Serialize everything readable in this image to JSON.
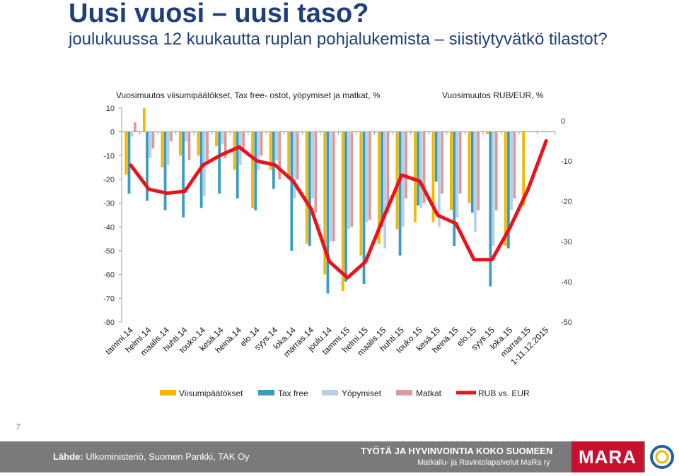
{
  "title": "Uusi vuosi – uusi taso?",
  "subtitle": "joulukuussa 12 kuukautta ruplan pohjalukemista – siistiytyvätkö tilastot?",
  "page_number": "7",
  "footer": {
    "source_label": "Lähde:",
    "source_text": "Ulkoministeriö, Suomen Pankki, TAK Oy",
    "tagline": "TYÖTÄ JA HYVINVOINTIA KOKO SUOMEEN",
    "org": "Matkailu- ja Ravintolapalvelut MaRa ry",
    "logo": "MARA"
  },
  "colors": {
    "viisumi": "#f5b800",
    "taxfree": "#3a9cbf",
    "yopymiset": "#b8d0e6",
    "matkat": "#d99b9b",
    "rub": "#e8141c",
    "axis_text": "#333333"
  },
  "chart_data": {
    "type": "bar",
    "title_left": "Vuosimuutos viisumipäätökset, Tax free- ostot, yöpymiset ja matkat, %",
    "title_right": "Vuosimuutos RUB/EUR, %",
    "categories": [
      "tammi.14",
      "helmi.14",
      "maalis.14",
      "huhti.14",
      "touko.14",
      "kesä.14",
      "heinä.14",
      "elo.14",
      "syys.14",
      "loka.14",
      "marras.14",
      "joulu.14",
      "tammi.15",
      "helmi.15",
      "maalis.15",
      "huhti.15",
      "touko.15",
      "kesä.15",
      "heinä.15",
      "elo.15",
      "syys.15",
      "loka.15",
      "marras.15",
      "1-11.12.2015"
    ],
    "y_left": {
      "min": -80,
      "max": 10,
      "ticks": [
        10,
        0,
        -10,
        -20,
        -30,
        -40,
        -50,
        -60,
        -70,
        -80
      ]
    },
    "y_right": {
      "min": -50,
      "max": 3,
      "ticks": [
        0,
        -10,
        -20,
        -30,
        -40,
        -50
      ]
    },
    "grid": false,
    "legend_position": "bottom",
    "series": [
      {
        "name": "Viisumipäätökset",
        "axis": "left",
        "kind": "bar",
        "values": [
          -18,
          10,
          -15,
          -10,
          -10,
          -6,
          -16,
          -32,
          -16,
          -20,
          -47,
          -60,
          -67,
          -52,
          -47,
          -41,
          -38,
          -38,
          -33,
          -30,
          -1,
          -48,
          -31,
          null
        ]
      },
      {
        "name": "Tax free",
        "axis": "left",
        "kind": "bar",
        "values": [
          -26,
          -29,
          -33,
          -36,
          -32,
          -26,
          -28,
          -33,
          -24,
          -50,
          -48,
          -68,
          -63,
          -64,
          -40,
          -52,
          -31,
          -21,
          -48,
          -34,
          -65,
          -49,
          null,
          null
        ]
      },
      {
        "name": "Yöpymiset",
        "axis": "left",
        "kind": "bar",
        "values": [
          -2,
          -11,
          -14,
          -4,
          -27,
          -5,
          -14,
          -16,
          -12,
          -28,
          -28,
          -46,
          -41,
          -38,
          -49,
          -40,
          -32,
          -40,
          -36,
          -42,
          -48,
          -33,
          null,
          null
        ]
      },
      {
        "name": "Matkat",
        "axis": "left",
        "kind": "bar",
        "values": [
          4,
          -7,
          -4,
          -12,
          -12,
          -11,
          -8,
          -10,
          -20,
          -20,
          -34,
          -46,
          -40,
          -37,
          -34,
          -28,
          -30,
          -26,
          -26,
          -33,
          -33,
          -28,
          null,
          null
        ]
      },
      {
        "name": "RUB vs. EUR",
        "axis": "right",
        "kind": "line",
        "values": [
          -11,
          -17,
          -18,
          -17.5,
          -11,
          -8.5,
          -6.5,
          -10,
          -11,
          -15,
          -22,
          -35,
          -39,
          -35,
          -24,
          -13.5,
          -15,
          -23.5,
          -25.5,
          -34.5,
          -34.5,
          -26.5,
          -17,
          -5
        ]
      }
    ]
  }
}
